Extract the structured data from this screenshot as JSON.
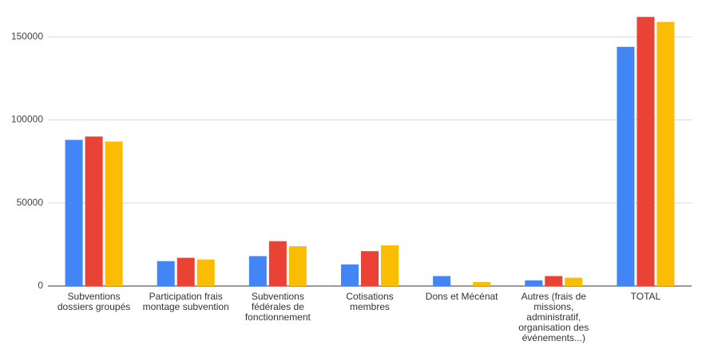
{
  "chart_data": {
    "type": "bar",
    "categories": [
      "Subventions dossiers groupés",
      "Participation frais montage subvention",
      "Subventions fédérales de fonctionnement",
      "Cotisations membres",
      "Dons et Mécénat",
      "Autres (frais de missions, administratif, organisation des événements...)",
      "TOTAL"
    ],
    "series": [
      {
        "color": "#4285f4",
        "values": [
          88000,
          15000,
          18000,
          13000,
          6000,
          3400,
          144000
        ]
      },
      {
        "color": "#ea4335",
        "values": [
          90000,
          17000,
          27000,
          21000,
          0,
          6000,
          162000
        ]
      },
      {
        "color": "#fbbc04",
        "values": [
          87000,
          16000,
          24000,
          24500,
          2400,
          5000,
          159000
        ]
      }
    ],
    "ylim": [
      0,
      165000
    ],
    "yticks": [
      0,
      50000,
      100000,
      150000
    ],
    "grid": true
  }
}
